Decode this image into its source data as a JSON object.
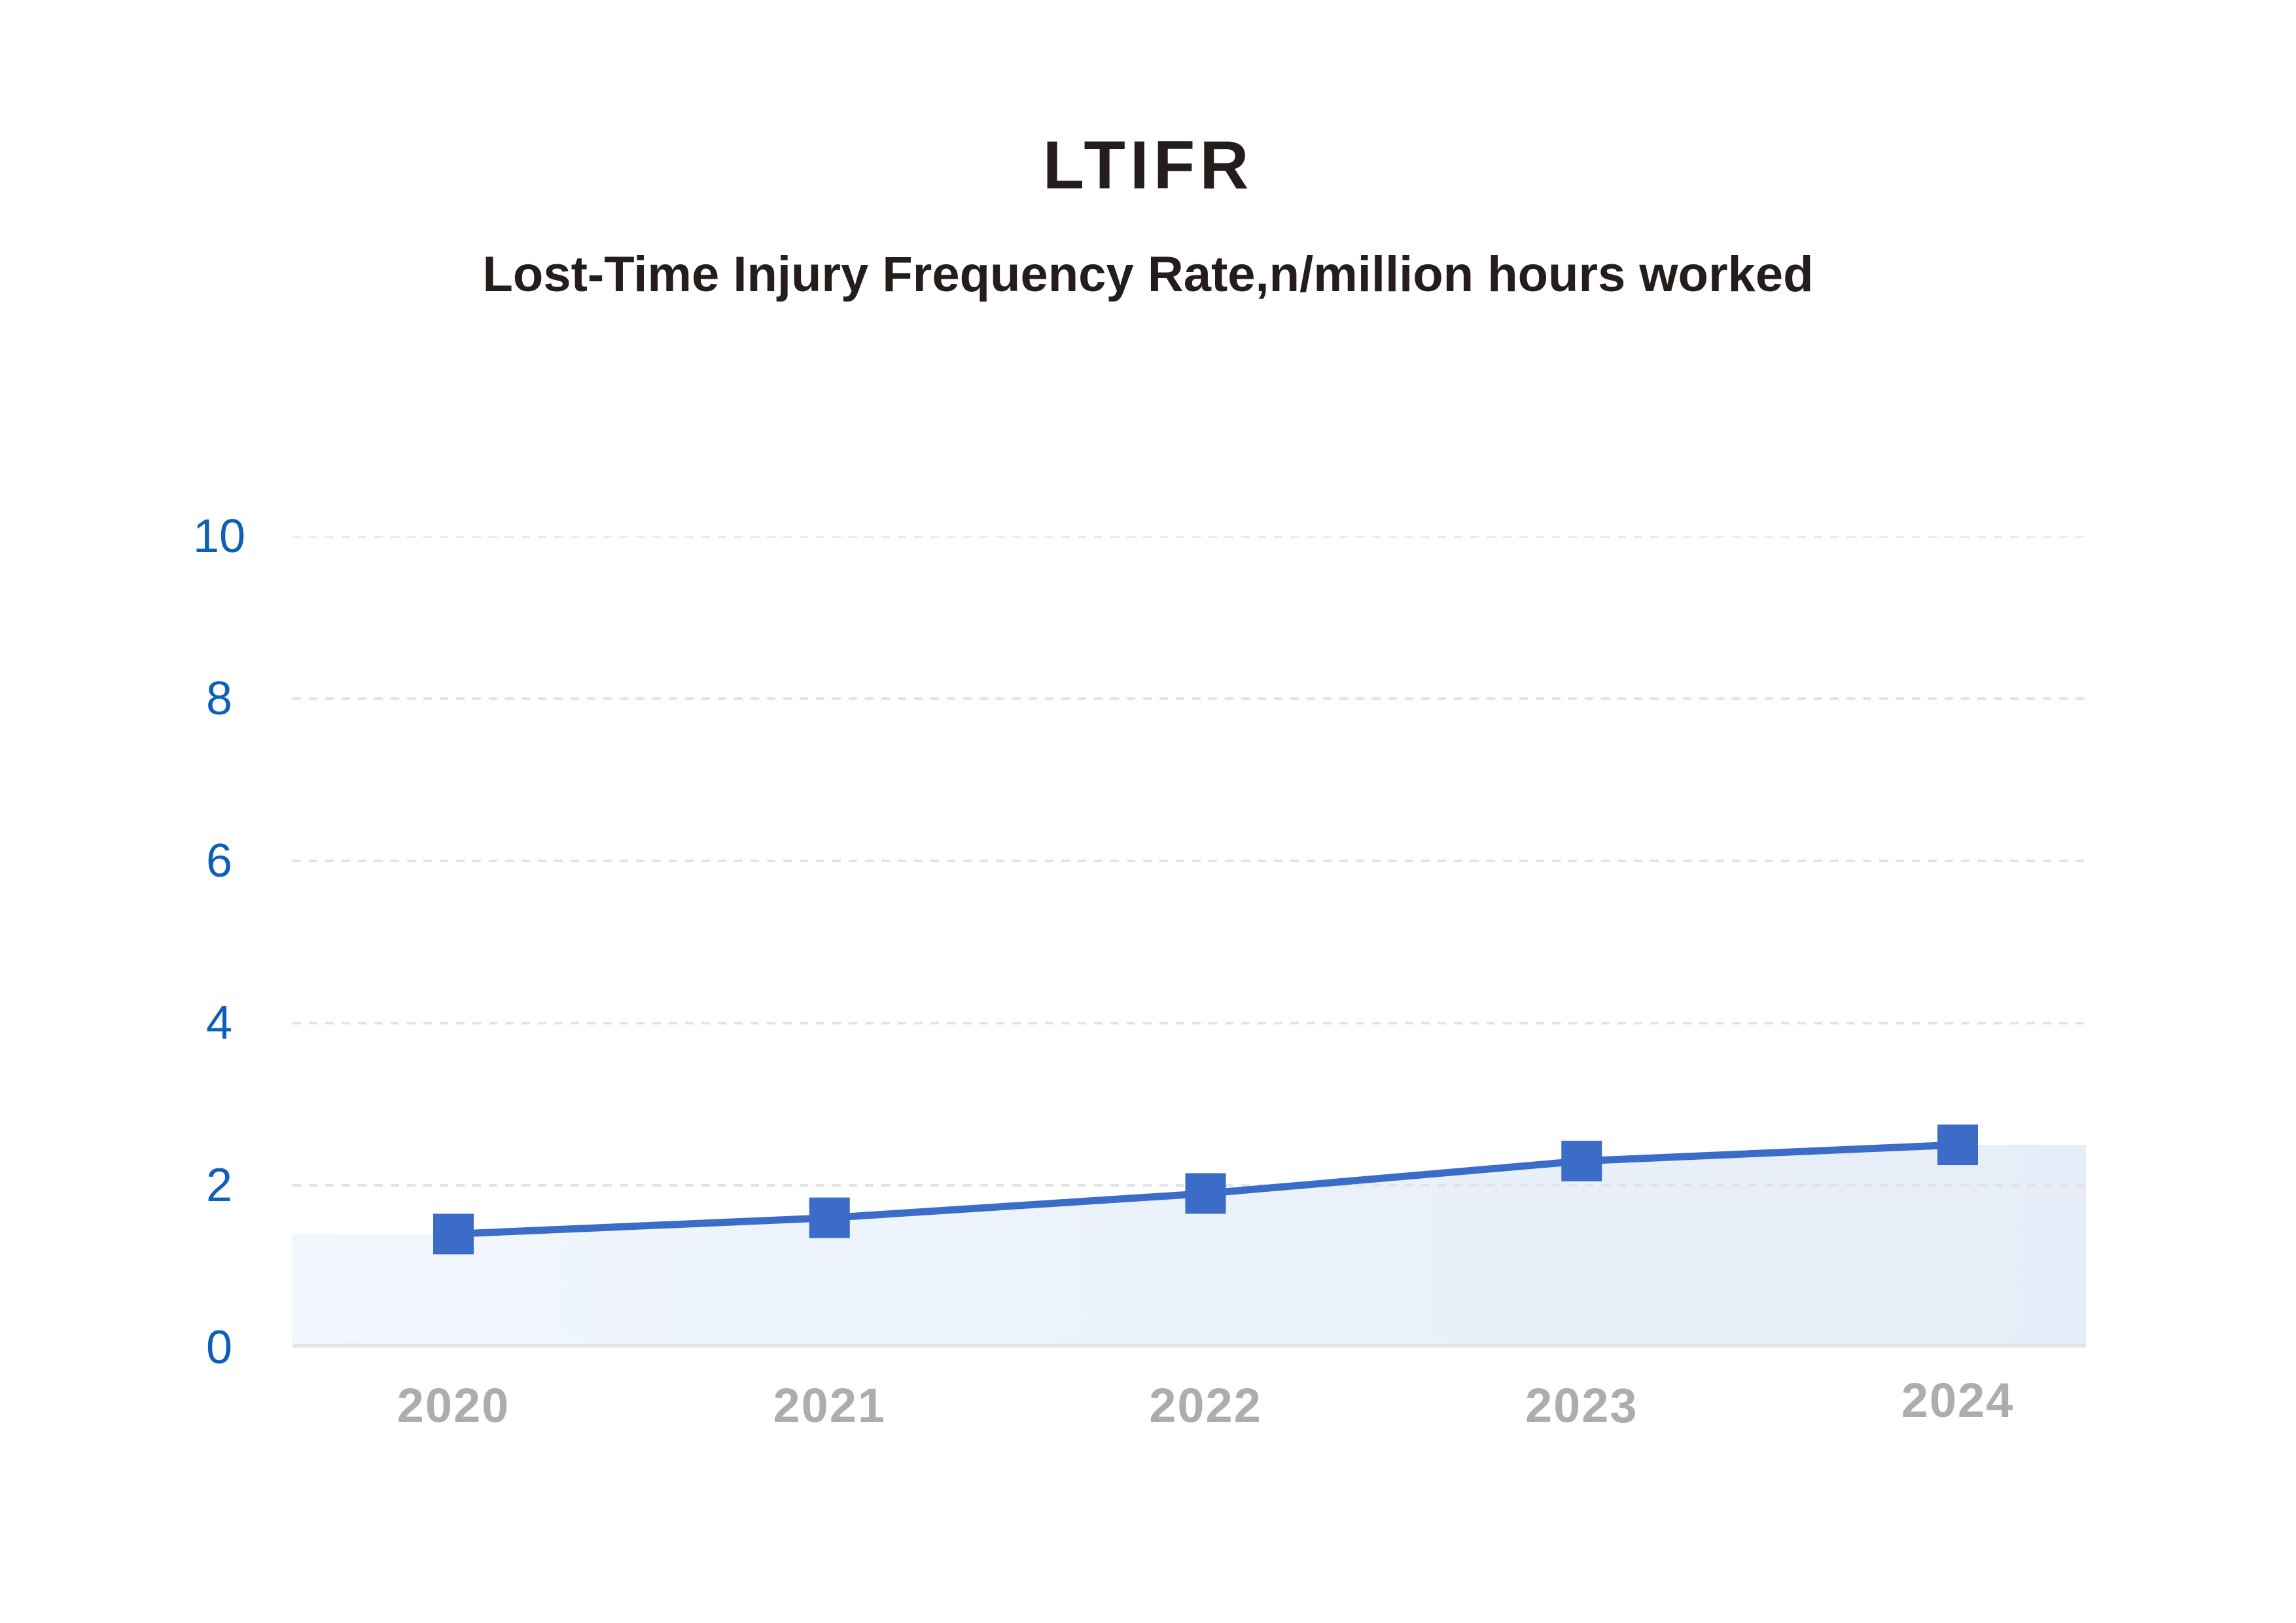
{
  "header": {
    "title": "LTIFR",
    "subtitle": "Lost-Time Injury Frequency Rate,n/million hours worked"
  },
  "chart_data": {
    "type": "line",
    "title": "LTIFR",
    "subtitle": "Lost-Time Injury Frequency Rate,n/million hours worked",
    "categories": [
      "2020",
      "2021",
      "2022",
      "2023",
      "2024"
    ],
    "series": [
      {
        "name": "LTIFR",
        "values": [
          1.4,
          1.6,
          1.9,
          2.3,
          2.5
        ]
      }
    ],
    "xlabel": "",
    "ylabel": "",
    "ylim": [
      0,
      10
    ],
    "yticks": [
      0,
      2,
      4,
      6,
      8,
      10
    ],
    "grid": "horizontal-dashed",
    "legend_position": "none",
    "marker": "square",
    "area_fill": true,
    "colors": {
      "line": "#3b6cc7",
      "marker": "#3b6cc7",
      "area_gradient_left": "#f1f7fc",
      "area_gradient_right": "#e6edf8",
      "y_tick_label": "#0e5fb8",
      "x_tick_label": "#adadad",
      "gridline": "#e3e3e3",
      "baseline": "#e4e4e4",
      "title_text": "#241d1b",
      "background": "#ffffff"
    }
  }
}
